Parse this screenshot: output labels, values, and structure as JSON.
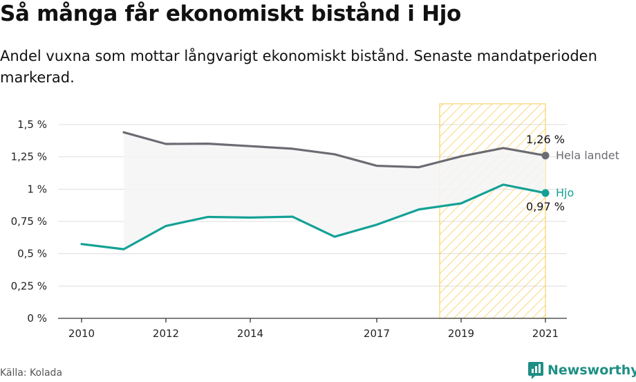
{
  "title": "Så många får ekonomiskt bistånd i Hjo",
  "subtitle": "Andel vuxna som mottar långvarigt ekonomiskt bistånd. Senaste mandatperioden markerad.",
  "source": "Källa: Kolada",
  "brand": "Newsworthy",
  "chart_data": {
    "type": "line",
    "x": [
      2010,
      2011,
      2012,
      2013,
      2014,
      2015,
      2016,
      2017,
      2018,
      2019,
      2020,
      2021
    ],
    "xticks": [
      "2010",
      "2012",
      "2014",
      "2017",
      "2019",
      "2021"
    ],
    "yticks": [
      "0 %",
      "0,25 %",
      "0,5 %",
      "0,75 %",
      "1 %",
      "1,25 %",
      "1,5 %"
    ],
    "ylim": [
      0,
      1.5
    ],
    "grid": true,
    "highlight_period": [
      2019,
      2021
    ],
    "series": [
      {
        "name": "Hela landet",
        "color": "#6b6b73",
        "values": [
          null,
          1.44,
          1.35,
          1.352,
          1.333,
          1.313,
          1.27,
          1.181,
          1.17,
          1.254,
          1.318,
          1.26
        ],
        "end_label": "1,26 %"
      },
      {
        "name": "Hjo",
        "color": "#14a195",
        "values": [
          0.575,
          0.535,
          0.715,
          0.785,
          0.78,
          0.787,
          0.632,
          0.725,
          0.843,
          0.89,
          1.035,
          0.97
        ],
        "end_label": "0,97 %"
      }
    ],
    "colors": {
      "highlight": "#f5c842",
      "area": "#f4f4f6",
      "grid": "#dddddd"
    }
  }
}
